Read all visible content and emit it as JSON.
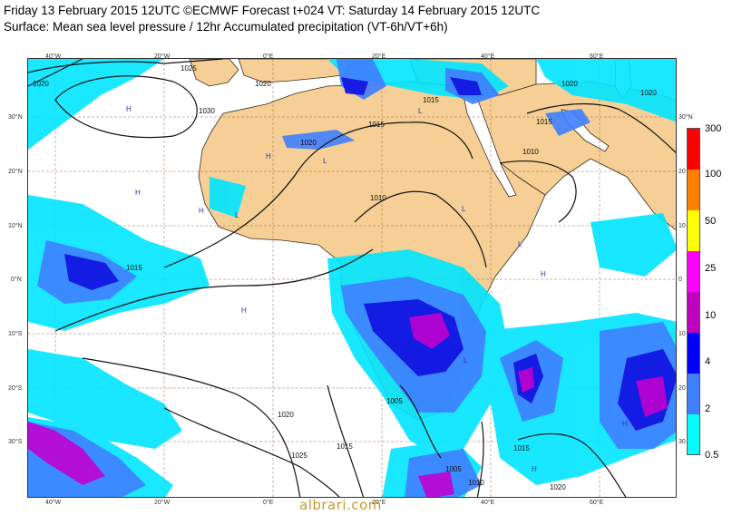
{
  "title_line1": "Friday 13 February 2015 12UTC ©ECMWF Forecast t+024 VT: Saturday 14 February 2015 12UTC",
  "title_line2": "Surface: Mean sea level pressure / 12hr Accumulated precipitation (VT-6h/VT+6h)",
  "lon_labels": [
    "40°W",
    "20°W",
    "0°E",
    "20°E",
    "40°E",
    "60°E"
  ],
  "lat_labels": [
    "30°N",
    "20°N",
    "10°N",
    "0°N",
    "10°S",
    "20°S",
    "30°S"
  ],
  "lat_labels_right": [
    "30°N",
    "20",
    "10",
    "0",
    "10",
    "20",
    "30"
  ],
  "isobar_labels": [
    "1030",
    "1025",
    "1020",
    "1015",
    "1010",
    "1005"
  ],
  "pressure_markers": [
    "H",
    "L"
  ],
  "legend": {
    "levels": [
      "300",
      "100",
      "50",
      "25",
      "10",
      "4",
      "2",
      "0.5"
    ],
    "colors": [
      "#ff0000",
      "#ff7f00",
      "#ffff00",
      "#ff00ff",
      "#bf00bf",
      "#0000ff",
      "#3f7fff",
      "#00ffff"
    ]
  },
  "colors": {
    "land": "#f5cf95",
    "ocean": "#ffffff",
    "precip_light": "#00e5ff",
    "precip_moderate": "#3f7fff",
    "precip_heavy": "#1010e0",
    "precip_very_heavy": "#c000d0",
    "grid": "#9a6a55"
  },
  "watermark": "albrari.com"
}
